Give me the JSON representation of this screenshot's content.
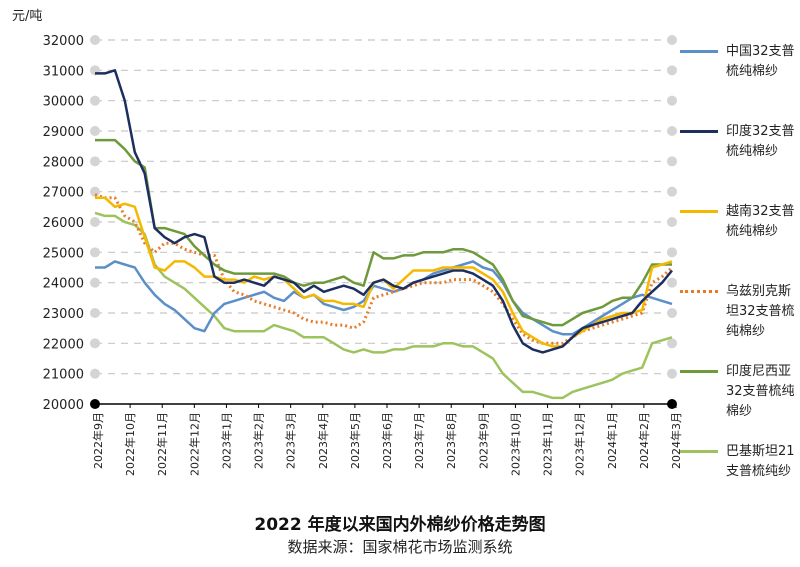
{
  "chart_data": {
    "type": "line",
    "title": "2022 年度以来国内外棉纱价格走势图",
    "subtitle": "数据来源：国家棉花市场监测系统",
    "ylabel": "元/吨",
    "ylim": [
      20000,
      32000
    ],
    "yticks": [
      20000,
      21000,
      22000,
      23000,
      24000,
      25000,
      26000,
      27000,
      28000,
      29000,
      30000,
      31000,
      32000
    ],
    "x_labels": [
      "2022年9月",
      "2022年10月",
      "2022年11月",
      "2022年12月",
      "2023年1月",
      "2023年2月",
      "2023年3月",
      "2023年4月",
      "2023年5月",
      "2023年6月",
      "2023年7月",
      "2023年8月",
      "2023年9月",
      "2023年10月",
      "2023年11月",
      "2023年12月",
      "2024年1月",
      "2024年2月",
      "2024年3月"
    ],
    "grid": true,
    "legend_position": "right",
    "series": [
      {
        "name": "中国32支普梳纯棉纱",
        "color": "#5b8fc9",
        "style": "solid",
        "values": [
          24500,
          24500,
          24700,
          24600,
          24500,
          24000,
          23600,
          23300,
          23100,
          22800,
          22500,
          22400,
          23000,
          23300,
          23400,
          23500,
          23600,
          23700,
          23500,
          23400,
          23700,
          23500,
          23600,
          23300,
          23200,
          23100,
          23200,
          23400,
          23900,
          23800,
          23700,
          23800,
          24000,
          24100,
          24300,
          24400,
          24500,
          24600,
          24700,
          24500,
          24400,
          24000,
          23400,
          23000,
          22800,
          22600,
          22400,
          22300,
          22300,
          22500,
          22700,
          22900,
          23100,
          23300,
          23500,
          23600,
          23500,
          23400,
          23300
        ]
      },
      {
        "name": "印度32支普梳纯棉纱",
        "color": "#1c2f5f",
        "style": "solid",
        "values": [
          30900,
          30900,
          31000,
          30000,
          28300,
          27600,
          25800,
          25500,
          25300,
          25500,
          25600,
          25500,
          24200,
          24000,
          24000,
          24100,
          24000,
          23900,
          24200,
          24100,
          24000,
          23700,
          23900,
          23700,
          23800,
          23900,
          23800,
          23600,
          24000,
          24100,
          23900,
          23800,
          24000,
          24100,
          24200,
          24300,
          24400,
          24400,
          24300,
          24100,
          23900,
          23400,
          22600,
          22000,
          21800,
          21700,
          21800,
          21900,
          22200,
          22500,
          22600,
          22700,
          22800,
          22900,
          23000,
          23400,
          23700,
          24000,
          24400
        ]
      },
      {
        "name": "越南32支普梳纯棉纱",
        "color": "#f5b800",
        "style": "solid",
        "values": [
          26800,
          26800,
          26500,
          26600,
          26500,
          25500,
          24500,
          24400,
          24700,
          24700,
          24500,
          24200,
          24200,
          24100,
          24100,
          24000,
          24200,
          24100,
          24200,
          24100,
          23800,
          23500,
          23600,
          23400,
          23400,
          23300,
          23300,
          23200,
          24000,
          24100,
          23800,
          24100,
          24400,
          24400,
          24400,
          24500,
          24500,
          24500,
          24500,
          24300,
          24100,
          23700,
          23000,
          22400,
          22200,
          22000,
          21900,
          21900,
          22200,
          22400,
          22600,
          22800,
          22900,
          23000,
          23000,
          23100,
          24500,
          24600,
          24700
        ]
      },
      {
        "name": "乌兹别克斯坦32支普梳纯棉纱",
        "color": "#e87b26",
        "style": "dotted",
        "values": [
          26900,
          26800,
          26800,
          26200,
          26000,
          25300,
          25000,
          25300,
          25300,
          25100,
          25000,
          24900,
          24900,
          24100,
          23700,
          23600,
          23400,
          23300,
          23200,
          23100,
          23000,
          22800,
          22700,
          22700,
          22600,
          22600,
          22500,
          22700,
          23500,
          23600,
          23700,
          23800,
          23900,
          24000,
          24000,
          24000,
          24100,
          24100,
          24100,
          23900,
          23700,
          23300,
          22800,
          22300,
          22100,
          22000,
          22000,
          22000,
          22200,
          22400,
          22500,
          22600,
          22700,
          22800,
          22900,
          23000,
          24000,
          24200,
          24500
        ]
      },
      {
        "name": "印度尼西亚32支普梳纯棉纱",
        "color": "#6f9a3c",
        "style": "solid",
        "values": [
          28700,
          28700,
          28700,
          28400,
          28000,
          27800,
          25800,
          25800,
          25700,
          25600,
          25200,
          24900,
          24600,
          24400,
          24300,
          24300,
          24300,
          24300,
          24300,
          24200,
          24000,
          23900,
          24000,
          24000,
          24100,
          24200,
          24000,
          23900,
          25000,
          24800,
          24800,
          24900,
          24900,
          25000,
          25000,
          25000,
          25100,
          25100,
          25000,
          24800,
          24600,
          24100,
          23400,
          22900,
          22800,
          22700,
          22600,
          22600,
          22800,
          23000,
          23100,
          23200,
          23400,
          23500,
          23500,
          24000,
          24600,
          24600,
          24600
        ]
      },
      {
        "name": "巴基斯坦21支普梳纯纱",
        "color": "#9dc35e",
        "style": "solid",
        "values": [
          26300,
          26200,
          26200,
          26000,
          25900,
          25600,
          24600,
          24200,
          24000,
          23800,
          23500,
          23200,
          22900,
          22500,
          22400,
          22400,
          22400,
          22400,
          22600,
          22500,
          22400,
          22200,
          22200,
          22200,
          22000,
          21800,
          21700,
          21800,
          21700,
          21700,
          21800,
          21800,
          21900,
          21900,
          21900,
          22000,
          22000,
          21900,
          21900,
          21700,
          21500,
          21000,
          20700,
          20400,
          20400,
          20300,
          20200,
          20200,
          20400,
          20500,
          20600,
          20700,
          20800,
          21000,
          21100,
          21200,
          22000,
          22100,
          22200
        ]
      }
    ]
  }
}
